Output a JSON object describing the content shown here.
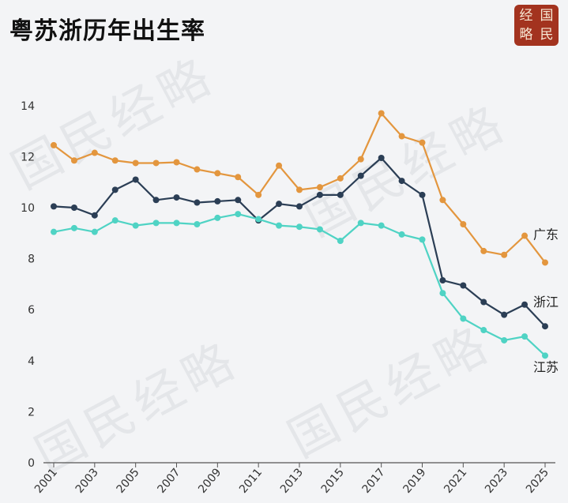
{
  "title": "粤苏浙历年出生率",
  "logo": {
    "chars": [
      "经",
      "国",
      "略",
      "民"
    ]
  },
  "watermark": "国民经略",
  "chart_data": {
    "type": "line",
    "x": [
      2001,
      2002,
      2003,
      2004,
      2005,
      2006,
      2007,
      2008,
      2009,
      2010,
      2011,
      2012,
      2013,
      2014,
      2015,
      2016,
      2017,
      2018,
      2019,
      2020,
      2021,
      2022,
      2023,
      2024,
      2025
    ],
    "x_tick_labels": [
      "2001",
      "2003",
      "2005",
      "2007",
      "2009",
      "2011",
      "2013",
      "2015",
      "2017",
      "2019",
      "2021",
      "2023",
      "2025"
    ],
    "y_tick_labels": [
      "0",
      "2",
      "4",
      "6",
      "8",
      "10",
      "12",
      "14"
    ],
    "ylim": [
      0,
      14.5
    ],
    "grid": false,
    "series": [
      {
        "name": "广东",
        "color": "#e3963e",
        "values": [
          12.45,
          11.85,
          12.15,
          11.85,
          11.75,
          11.75,
          11.78,
          11.5,
          11.35,
          11.2,
          10.5,
          11.65,
          10.7,
          10.8,
          11.15,
          11.9,
          13.7,
          12.8,
          12.55,
          10.3,
          9.35,
          8.3,
          8.15,
          8.9,
          7.85
        ]
      },
      {
        "name": "浙江",
        "color": "#2b3e55",
        "values": [
          10.05,
          10.0,
          9.7,
          10.7,
          11.1,
          10.3,
          10.4,
          10.2,
          10.25,
          10.3,
          9.5,
          10.15,
          10.05,
          10.5,
          10.5,
          11.25,
          11.95,
          11.05,
          10.5,
          7.15,
          6.95,
          6.3,
          5.8,
          6.2,
          5.35
        ]
      },
      {
        "name": "江苏",
        "color": "#4fd3c4",
        "values": [
          9.05,
          9.2,
          9.05,
          9.5,
          9.3,
          9.4,
          9.4,
          9.35,
          9.6,
          9.75,
          9.55,
          9.3,
          9.25,
          9.15,
          8.7,
          9.4,
          9.3,
          8.95,
          8.75,
          6.65,
          5.65,
          5.2,
          4.8,
          4.95,
          4.2
        ]
      }
    ]
  }
}
